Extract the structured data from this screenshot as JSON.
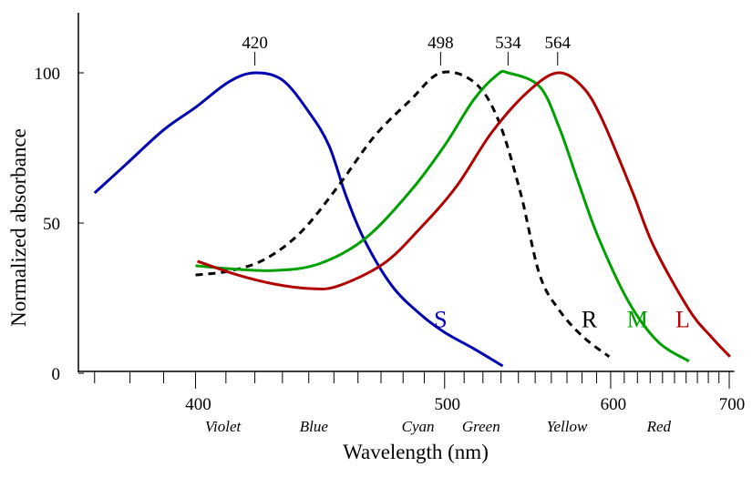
{
  "chart_data": {
    "type": "line",
    "title": "",
    "xlabel": "Wavelength (nm)",
    "ylabel": "Normalized absorbance",
    "x_scale": "reciprocal",
    "xlim": [
      365,
      705
    ],
    "ylim": [
      0,
      120
    ],
    "grid": false,
    "x_ticks": [
      400,
      500,
      600,
      700
    ],
    "x_minor_step": 10,
    "y_ticks": [
      0,
      50,
      100
    ],
    "color_bands": [
      {
        "label": "Violet",
        "x": 409
      },
      {
        "label": "Blue",
        "x": 442
      },
      {
        "label": "Cyan",
        "x": 487
      },
      {
        "label": "Green",
        "x": 519
      },
      {
        "label": "Yellow",
        "x": 570
      },
      {
        "label": "Red",
        "x": 637
      }
    ],
    "peak_labels": [
      {
        "label": "420",
        "x": 420
      },
      {
        "label": "498",
        "x": 498
      },
      {
        "label": "534",
        "x": 534
      },
      {
        "label": "564",
        "x": 564
      }
    ],
    "series": [
      {
        "name": "S",
        "color": "#0000b0",
        "dashed": false,
        "label_at": [
          498,
          18
        ],
        "points": [
          [
            370,
            60
          ],
          [
            379,
            69.7
          ],
          [
            390,
            81
          ],
          [
            400,
            88.5
          ],
          [
            411,
            97
          ],
          [
            420,
            100
          ],
          [
            430,
            97.6
          ],
          [
            440,
            87
          ],
          [
            448,
            75.8
          ],
          [
            455,
            59
          ],
          [
            463,
            44
          ],
          [
            475,
            29
          ],
          [
            488,
            19.7
          ],
          [
            500,
            13.6
          ],
          [
            515,
            8.2
          ],
          [
            531,
            2.4
          ]
        ]
      },
      {
        "name": "R",
        "color": "#000000",
        "dashed": true,
        "label_at": [
          585,
          18
        ],
        "points": [
          [
            400,
            32.7
          ],
          [
            411,
            34
          ],
          [
            423.5,
            37.9
          ],
          [
            437,
            47
          ],
          [
            451.5,
            62
          ],
          [
            467,
            78.8
          ],
          [
            483.4,
            90.9
          ],
          [
            498,
            100
          ],
          [
            515,
            97
          ],
          [
            528,
            85
          ],
          [
            541,
            60.6
          ],
          [
            552.6,
            33
          ],
          [
            565,
            21
          ],
          [
            581,
            12
          ],
          [
            599,
            5.5
          ]
        ]
      },
      {
        "name": "M",
        "color": "#00a000",
        "dashed": false,
        "label_at": [
          620,
          18
        ],
        "points": [
          [
            400,
            35.8
          ],
          [
            411,
            34.8
          ],
          [
            427,
            34.2
          ],
          [
            444,
            36.4
          ],
          [
            463,
            44.8
          ],
          [
            483.4,
            60.6
          ],
          [
            500,
            75.8
          ],
          [
            515,
            91
          ],
          [
            528,
            99.4
          ],
          [
            534,
            100
          ],
          [
            552.6,
            95.5
          ],
          [
            565,
            81.8
          ],
          [
            577.5,
            63.6
          ],
          [
            591,
            45.5
          ],
          [
            612.7,
            24.2
          ],
          [
            636,
            10.6
          ],
          [
            662.5,
            4
          ]
        ]
      },
      {
        "name": "L",
        "color": "#b00000",
        "dashed": false,
        "label_at": [
          657,
          18
        ],
        "points": [
          [
            400.6,
            37.3
          ],
          [
            414,
            32.7
          ],
          [
            427,
            29.7
          ],
          [
            440.5,
            28.2
          ],
          [
            451.5,
            29
          ],
          [
            471,
            36.4
          ],
          [
            487.7,
            48
          ],
          [
            505.8,
            62
          ],
          [
            525,
            80.3
          ],
          [
            546,
            93.9
          ],
          [
            564,
            100
          ],
          [
            580,
            95.5
          ],
          [
            593.6,
            84.8
          ],
          [
            616,
            60.6
          ],
          [
            632.7,
            42.4
          ],
          [
            662.5,
            21.2
          ],
          [
            683,
            12
          ],
          [
            700.8,
            5.5
          ]
        ]
      }
    ]
  }
}
